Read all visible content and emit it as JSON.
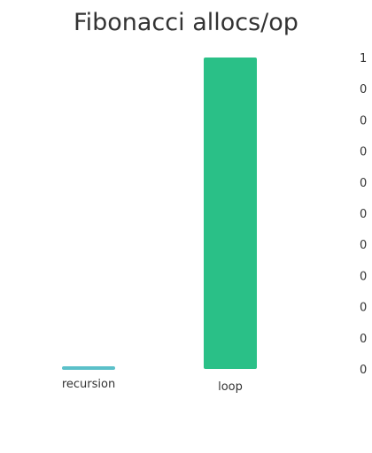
{
  "chart_data": {
    "type": "bar",
    "title": "Fibonacci allocs/op",
    "xlabel": "",
    "ylabel": "",
    "categories": [
      "recursion",
      "loop"
    ],
    "values": [
      0,
      1
    ],
    "colors": [
      "#5bc0c9",
      "#2ac087"
    ],
    "ylim": [
      0,
      1
    ],
    "yticks": [
      "1",
      "0",
      "0",
      "0",
      "0",
      "0",
      "0",
      "0",
      "0",
      "0",
      "0"
    ],
    "y_axis_position": "right",
    "grid": false,
    "legend": "none"
  }
}
